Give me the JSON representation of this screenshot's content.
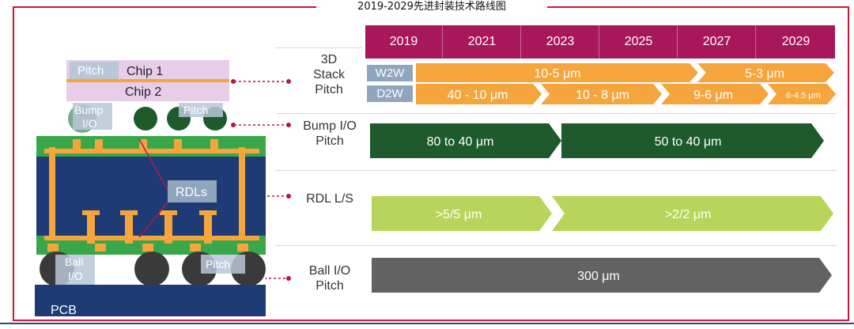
{
  "title": "2019-2029先进封装技术路线图",
  "years": [
    "2019",
    "2021",
    "2023",
    "2025",
    "2027",
    "2029"
  ],
  "colors": {
    "frame": "#d01535",
    "year_bar": "#a8175a",
    "stack": "#f5a53c",
    "bump": "#1e5a2c",
    "rdl": "#b8d45a",
    "ball": "#626262"
  },
  "rows": {
    "stack": {
      "label_lines": [
        "3D",
        "Stack",
        "Pitch"
      ],
      "w2w_tag": "W2W",
      "d2w_tag": "D2W",
      "w2w": [
        "10-5 μm",
        "5-3 μm"
      ],
      "d2w": [
        "40 - 10 μm",
        "10 - 8 μm",
        "9-6 μm",
        "6-4.5 μm"
      ]
    },
    "bump": {
      "label_lines": [
        "Bump I/O",
        "Pitch"
      ],
      "segments": [
        "80 to 40 μm",
        "50 to 40 μm"
      ]
    },
    "rdl": {
      "label_lines": [
        "RDL L/S"
      ],
      "segments": [
        ">5/5 μm",
        ">2/2 μm"
      ]
    },
    "ball": {
      "label_lines": [
        "Ball I/O",
        "Pitch"
      ],
      "segments": [
        "300 μm"
      ]
    }
  },
  "package": {
    "pitch": "Pitch",
    "chip1": "Chip 1",
    "chip2": "Chip 2",
    "bump_lines": [
      "Bump",
      "I/O"
    ],
    "rdls": "RDLs",
    "ball_lines": [
      "Ball",
      "I/O"
    ],
    "pcb": "PCB"
  }
}
